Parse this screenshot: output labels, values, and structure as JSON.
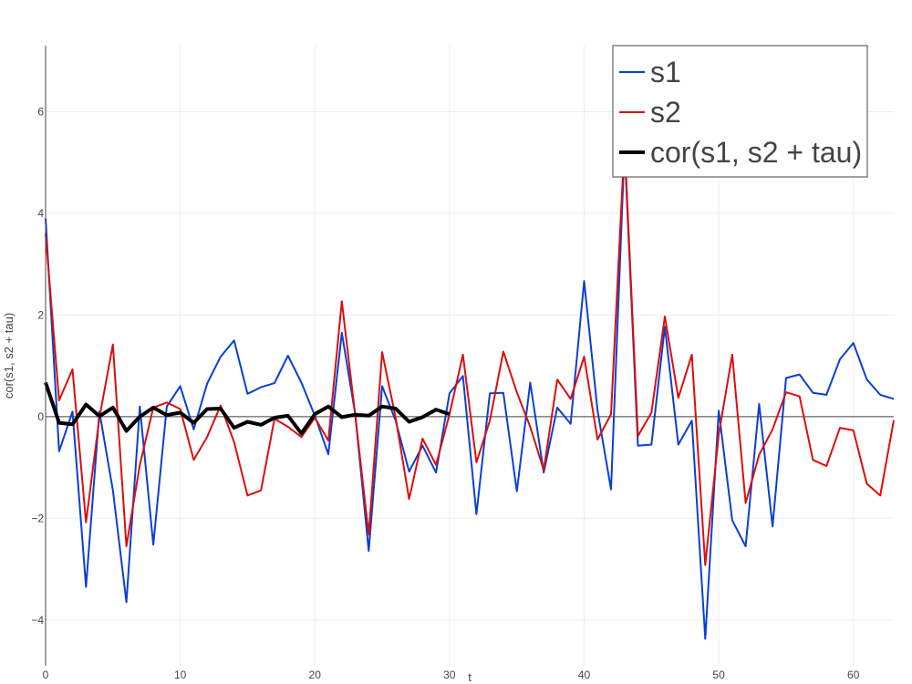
{
  "chart_data": {
    "type": "line",
    "xlabel": "t",
    "ylabel": "cor(s1, s2 + tau)",
    "xlim": [
      0,
      63
    ],
    "ylim": [
      -4.9,
      7.3
    ],
    "x_ticks": [
      0,
      10,
      20,
      30,
      40,
      50,
      60
    ],
    "y_ticks": [
      -4,
      -2,
      0,
      2,
      4,
      6
    ],
    "grid": true,
    "legend_position": "top-right",
    "series": [
      {
        "name": "s1",
        "color": "#0a3fd6",
        "x_start": 0,
        "values": [
          3.9,
          -0.68,
          0.1,
          -3.35,
          0.1,
          -1.45,
          -3.65,
          0.2,
          -2.52,
          0.2,
          0.6,
          -0.25,
          0.65,
          1.18,
          1.5,
          0.45,
          0.58,
          0.66,
          1.2,
          0.67,
          0.02,
          -0.74,
          1.65,
          0.05,
          -2.64,
          0.6,
          -0.08,
          -1.08,
          -0.57,
          -1.1,
          0.46,
          0.8,
          -1.92,
          0.46,
          0.47,
          -1.47,
          0.67,
          -1.1,
          0.18,
          -0.14,
          2.67,
          0.12,
          -1.43,
          5.3,
          -0.57,
          -0.55,
          1.77,
          -0.55,
          -0.08,
          -4.37,
          0.12,
          -2.04,
          -2.55,
          0.25,
          -2.16,
          0.76,
          0.83,
          0.47,
          0.43,
          1.13,
          1.45,
          0.73,
          0.43,
          0.35
        ]
      },
      {
        "name": "s2",
        "color": "#dd0d0d",
        "x_start": 0,
        "values": [
          3.6,
          0.32,
          0.93,
          -2.08,
          -0.02,
          1.42,
          -2.55,
          -0.95,
          0.18,
          0.28,
          0.15,
          -0.85,
          -0.4,
          0.22,
          -0.5,
          -1.55,
          -1.45,
          -0.04,
          -0.2,
          -0.4,
          -0.02,
          -0.47,
          2.27,
          0.03,
          -2.32,
          1.27,
          -0.02,
          -1.62,
          -0.43,
          -0.95,
          0.05,
          1.22,
          -0.9,
          -0.08,
          1.28,
          0.48,
          -0.2,
          -1.05,
          0.73,
          0.35,
          1.18,
          -0.45,
          0.05,
          5.4,
          -0.38,
          0.08,
          1.97,
          0.37,
          1.22,
          -2.92,
          -0.35,
          1.22,
          -1.7,
          -0.75,
          -0.25,
          0.48,
          0.4,
          -0.85,
          -0.97,
          -0.22,
          -0.27,
          -1.32,
          -1.55,
          -0.07
        ]
      },
      {
        "name": "cor(s1, s2 + tau)",
        "color": "#000000",
        "x_start": 0,
        "values": [
          0.67,
          -0.12,
          -0.15,
          0.24,
          0.01,
          0.18,
          -0.28,
          0.0,
          0.18,
          0.03,
          0.08,
          -0.12,
          0.15,
          0.16,
          -0.22,
          -0.1,
          -0.16,
          -0.02,
          0.02,
          -0.33,
          0.05,
          0.2,
          -0.01,
          0.04,
          0.02,
          0.2,
          0.16,
          -0.1,
          -0.01,
          0.14,
          0.05
        ]
      }
    ]
  }
}
